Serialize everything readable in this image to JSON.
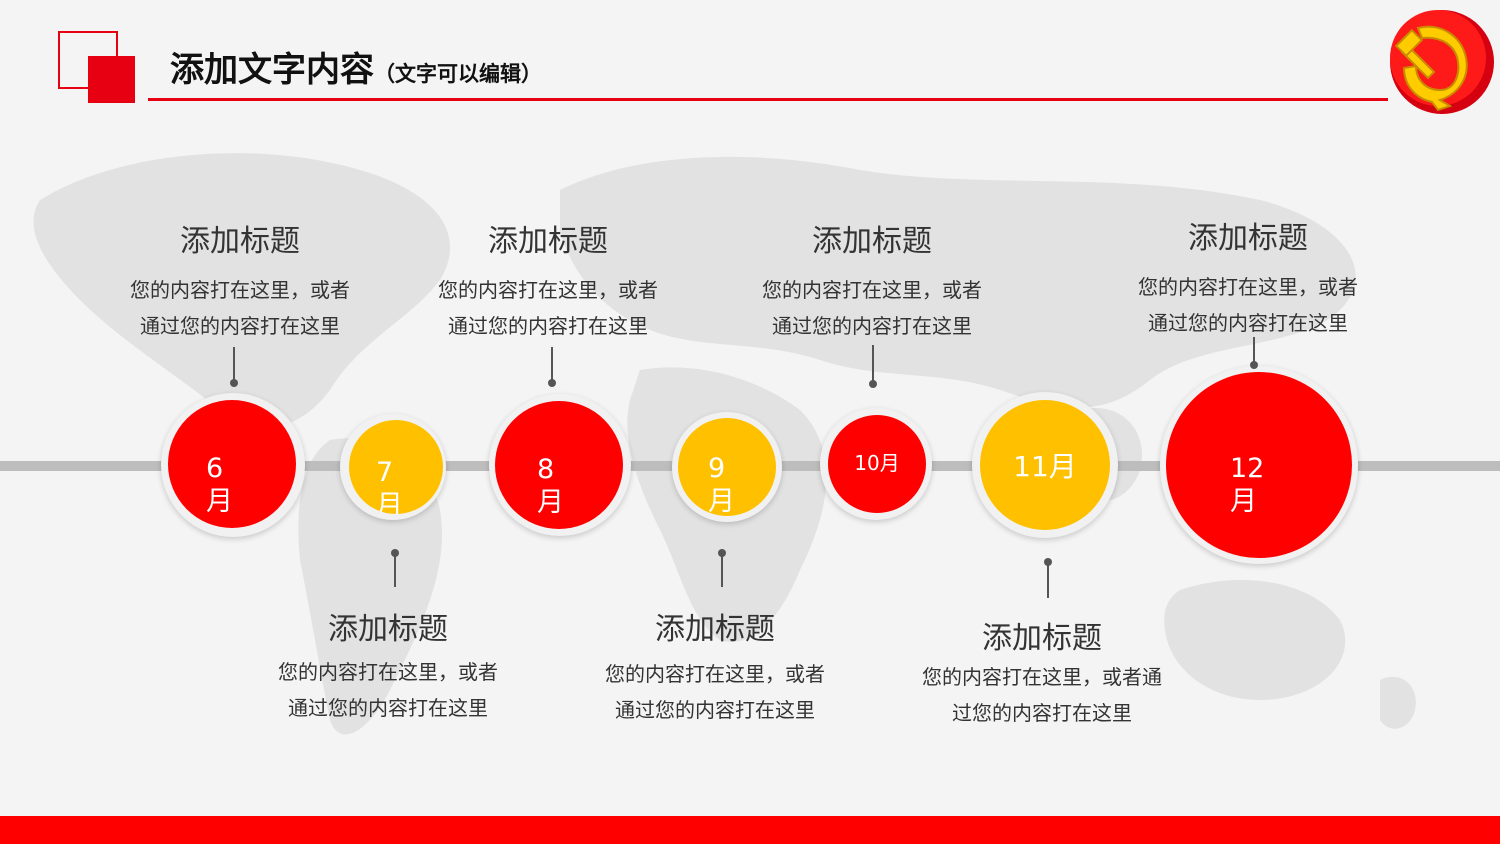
{
  "header": {
    "title": "添加文字内容",
    "subtitle": "（文字可以编辑）",
    "emblem_icon": "party-emblem-icon"
  },
  "colors": {
    "accent_red": "#e60012",
    "bright_red": "#ff0000",
    "yellow": "#ffc000",
    "timeline_gray": "#bdbdbd"
  },
  "milestones": [
    {
      "month": "6月",
      "color": "red"
    },
    {
      "month": "7月",
      "color": "yellow"
    },
    {
      "month": "8月",
      "color": "red"
    },
    {
      "month": "9月",
      "color": "yellow"
    },
    {
      "month": "10月",
      "color": "red"
    },
    {
      "month": "11月",
      "color": "yellow"
    },
    {
      "month": "12月",
      "color": "red"
    }
  ],
  "texts": [
    {
      "title": "添加标题",
      "line1": "您的内容打在这里，或者",
      "line2": "通过您的内容打在这里"
    },
    {
      "title": "添加标题",
      "line1": "您的内容打在这里，或者",
      "line2": "通过您的内容打在这里"
    },
    {
      "title": "添加标题",
      "line1": "您的内容打在这里，或者",
      "line2": "通过您的内容打在这里"
    },
    {
      "title": "添加标题",
      "line1": "您的内容打在这里，或者",
      "line2": "通过您的内容打在这里"
    },
    {
      "title": "添加标题",
      "line1": "您的内容打在这里，或者通",
      "line2": "过您的内容打在这里"
    },
    {
      "title": "添加标题",
      "line1": "您的内容打在这里，或者通",
      "line2": "过您的内容打在这里"
    },
    {
      "title": "添加标题",
      "line1": "您的内容打在这里，或者",
      "line2": "通过您的内容打在这里"
    }
  ]
}
